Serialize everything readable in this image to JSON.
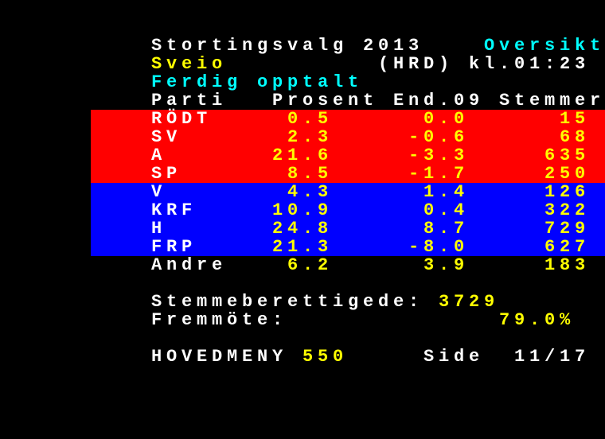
{
  "colors": {
    "text": "#ffffff",
    "value": "#ffff00",
    "accent": "#00ffff",
    "red_band": "#ff0000",
    "blue_band": "#0000ff",
    "background": "#000000"
  },
  "header": {
    "title": "Stortingsvalg 2013",
    "section": "Oversikt",
    "location": "Sveio",
    "region_code": "(HRD)",
    "time": "kl.01:23",
    "status": "Ferdig opptalt"
  },
  "columns": [
    "Parti",
    "Prosent",
    "End.09",
    "Stemmer"
  ],
  "rows": [
    {
      "party": "RÖDT",
      "pct": "0.5",
      "change": "0.0",
      "votes": "15",
      "bloc": "red"
    },
    {
      "party": "SV",
      "pct": "2.3",
      "change": "-0.6",
      "votes": "68",
      "bloc": "red"
    },
    {
      "party": "A",
      "pct": "21.6",
      "change": "-3.3",
      "votes": "635",
      "bloc": "red"
    },
    {
      "party": "SP",
      "pct": "8.5",
      "change": "-1.7",
      "votes": "250",
      "bloc": "red"
    },
    {
      "party": "V",
      "pct": "4.3",
      "change": "1.4",
      "votes": "126",
      "bloc": "blue"
    },
    {
      "party": "KRF",
      "pct": "10.9",
      "change": "0.4",
      "votes": "322",
      "bloc": "blue"
    },
    {
      "party": "H",
      "pct": "24.8",
      "change": "8.7",
      "votes": "729",
      "bloc": "blue"
    },
    {
      "party": "FRP",
      "pct": "21.3",
      "change": "-8.0",
      "votes": "627",
      "bloc": "blue"
    },
    {
      "party": "Andre",
      "pct": "6.2",
      "change": "3.9",
      "votes": "183",
      "bloc": "none"
    }
  ],
  "summary": {
    "eligible_label": "Stemmeberettigede:",
    "eligible_value": "3729",
    "turnout_label": "Fremmöte:",
    "turnout_value": "79.0%"
  },
  "footer": {
    "menu_label": "HOVEDMENY",
    "menu_page": "550",
    "page_label": "Side",
    "page_value": "11/17"
  }
}
